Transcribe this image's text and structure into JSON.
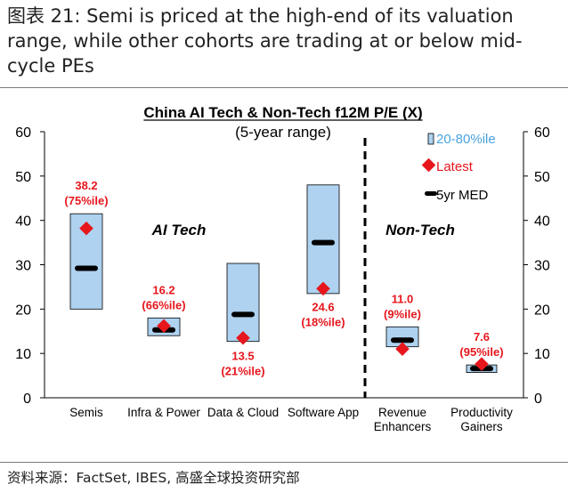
{
  "header": {
    "title": "图表 21: Semi is priced at the high-end of its valuation range, while other cohorts are trading at or below mid-cycle PEs"
  },
  "footer": {
    "source": "资料来源：FactSet, IBES, 高盛全球投资研究部"
  },
  "colors": {
    "range_fill": "#aed2f0",
    "latest": "#e6161c",
    "median": "#000000",
    "label_red": "#e6161c",
    "legend_range_text": "#4aa3df"
  },
  "chart_data": {
    "type": "range-bar",
    "title": "China AI Tech & Non-Tech f12M P/E (X)",
    "subtitle": "(5-year range)",
    "ylim": [
      0,
      60
    ],
    "yticks": [
      0,
      10,
      20,
      30,
      40,
      50,
      60
    ],
    "yticks_right": [
      0,
      10,
      20,
      30,
      40,
      50,
      60
    ],
    "groups": [
      {
        "label": "AI Tech",
        "count": 4
      },
      {
        "label": "Non-Tech",
        "count": 2
      }
    ],
    "categories": [
      {
        "name": "Semis",
        "low": 20,
        "high": 41.5,
        "median": 29.2,
        "latest": 38.2,
        "latest_label": "38.2",
        "pct_label": "(75%ile)",
        "label_pos": "above"
      },
      {
        "name": "Infra & Power",
        "low": 14,
        "high": 18,
        "median": 15.3,
        "latest": 16.2,
        "latest_label": "16.2",
        "pct_label": "(66%ile)",
        "label_pos": "above"
      },
      {
        "name": "Data & Cloud",
        "low": 12.7,
        "high": 30.3,
        "median": 18.8,
        "latest": 13.5,
        "latest_label": "13.5",
        "pct_label": "(21%ile)",
        "label_pos": "below"
      },
      {
        "name": "Software App",
        "low": 23.5,
        "high": 48,
        "median": 35,
        "latest": 24.6,
        "latest_label": "24.6",
        "pct_label": "(18%ile)",
        "label_pos": "below"
      },
      {
        "name": "Revenue Enhancers",
        "low": 11.5,
        "high": 16,
        "median": 13,
        "latest": 11,
        "latest_label": "11.0",
        "pct_label": "(9%ile)",
        "label_pos": "above"
      },
      {
        "name": "Productivity Gainers",
        "low": 5.7,
        "high": 7.4,
        "median": 6.6,
        "latest": 7.6,
        "latest_label": "7.6",
        "pct_label": "(95%ile)",
        "label_pos": "above"
      }
    ],
    "legend": [
      {
        "label": "20-80%ile",
        "marker": "range"
      },
      {
        "label": "Latest",
        "marker": "latest"
      },
      {
        "label": "5yr MED",
        "marker": "median"
      }
    ],
    "legend_position": "top-right"
  }
}
